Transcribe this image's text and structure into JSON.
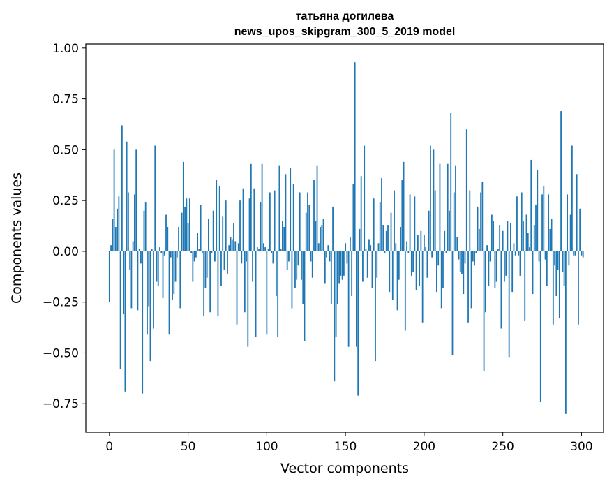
{
  "chart_data": {
    "type": "bar",
    "title": "татьяна догилева",
    "subtitle": "news_upos_skipgram_300_5_2019 model",
    "xlabel": "Vector components",
    "ylabel": "Components values",
    "xlim": [
      -15,
      314
    ],
    "ylim": [
      -0.89,
      1.02
    ],
    "xticks": [
      "0",
      "50",
      "100",
      "150",
      "200",
      "250",
      "300"
    ],
    "yticks": [
      "−0.75",
      "−0.50",
      "−0.25",
      "0.00",
      "0.25",
      "0.50",
      "0.75",
      "1.00"
    ],
    "grid": false,
    "bar_color": "#1f77b4",
    "values": [
      -0.25,
      0.03,
      0.16,
      0.5,
      0.12,
      0.21,
      0.27,
      -0.58,
      0.62,
      -0.31,
      -0.69,
      0.54,
      0.29,
      -0.09,
      -0.28,
      0.05,
      0.28,
      0.5,
      -0.29,
      0.01,
      -0.06,
      -0.7,
      0.2,
      0.24,
      -0.41,
      -0.27,
      -0.54,
      0.01,
      -0.38,
      0.52,
      -0.15,
      -0.17,
      0.02,
      -0.01,
      -0.23,
      -0.02,
      0.18,
      0.12,
      -0.41,
      -0.03,
      -0.24,
      -0.21,
      -0.15,
      -0.03,
      0.12,
      -0.28,
      0.19,
      0.44,
      0.22,
      0.26,
      0.14,
      0.26,
      -0.01,
      -0.15,
      -0.05,
      -0.03,
      0.09,
      0.01,
      0.23,
      -0.01,
      -0.32,
      -0.18,
      -0.13,
      0.16,
      -0.3,
      -0.01,
      0.2,
      -0.05,
      0.35,
      -0.32,
      0.32,
      -0.17,
      0.17,
      -0.09,
      0.25,
      -0.11,
      0.03,
      0.07,
      0.06,
      0.14,
      0.05,
      -0.36,
      0.04,
      0.25,
      -0.06,
      0.31,
      -0.3,
      -0.05,
      -0.47,
      0.26,
      0.43,
      -0.15,
      0.31,
      -0.42,
      0.02,
      0.01,
      0.24,
      0.43,
      0.04,
      0.02,
      -0.41,
      0.01,
      0.29,
      -0.01,
      -0.06,
      0.3,
      -0.22,
      -0.42,
      0.42,
      0.01,
      0.15,
      0.12,
      0.38,
      -0.09,
      -0.05,
      0.41,
      -0.28,
      0.33,
      -0.18,
      -0.14,
      -0.07,
      0.29,
      -0.14,
      -0.26,
      -0.44,
      0.19,
      0.29,
      0.23,
      -0.05,
      -0.13,
      0.35,
      0.15,
      0.42,
      0.04,
      0.12,
      0.13,
      0.16,
      -0.16,
      -0.03,
      0.03,
      -0.05,
      -0.26,
      0.22,
      -0.64,
      -0.42,
      -0.26,
      -0.16,
      -0.12,
      -0.14,
      -0.12,
      0.04,
      -0.06,
      -0.47,
      0.07,
      -0.22,
      0.33,
      0.93,
      -0.47,
      -0.71,
      0.11,
      0.37,
      -0.15,
      0.52,
      0.01,
      -0.13,
      0.06,
      0.03,
      -0.18,
      0.26,
      -0.54,
      -0.13,
      0.04,
      0.24,
      0.36,
      0.13,
      -0.01,
      0.1,
      0.13,
      -0.2,
      0.19,
      -0.24,
      0.3,
      0.04,
      -0.29,
      -0.14,
      0.12,
      0.35,
      0.44,
      -0.39,
      0.05,
      -0.01,
      0.28,
      -0.12,
      -0.1,
      0.27,
      -0.19,
      0.08,
      -0.17,
      0.1,
      -0.35,
      0.08,
      0.02,
      -0.13,
      0.2,
      0.52,
      -0.03,
      0.5,
      0.3,
      -0.2,
      -0.07,
      0.43,
      -0.28,
      -0.18,
      0.1,
      -0.01,
      0.43,
      0.2,
      0.68,
      -0.51,
      0.29,
      0.42,
      0.07,
      -0.04,
      -0.1,
      -0.11,
      -0.21,
      -0.06,
      0.6,
      -0.35,
      0.3,
      -0.28,
      -0.05,
      -0.07,
      -0.01,
      0.22,
      0.11,
      0.29,
      0.34,
      -0.59,
      -0.3,
      0.03,
      -0.17,
      -0.05,
      0.18,
      0.15,
      -0.18,
      -0.15,
      0.01,
      0.13,
      -0.38,
      0.1,
      -0.15,
      -0.12,
      0.15,
      -0.52,
      0.14,
      -0.2,
      0.04,
      -0.02,
      0.27,
      -0.02,
      -0.12,
      0.29,
      0.15,
      -0.34,
      0.18,
      0.09,
      0.02,
      0.45,
      -0.21,
      0.13,
      0.23,
      0.4,
      -0.05,
      -0.74,
      0.28,
      0.32,
      -0.04,
      -0.17,
      0.28,
      0.11,
      0.16,
      -0.36,
      -0.07,
      -0.22,
      -0.09,
      -0.33,
      0.69,
      -0.1,
      -0.17,
      -0.8,
      0.28,
      -0.07,
      0.18,
      0.52,
      -0.02,
      -0.02,
      0.38,
      -0.36,
      0.21,
      -0.02,
      -0.03
    ]
  }
}
